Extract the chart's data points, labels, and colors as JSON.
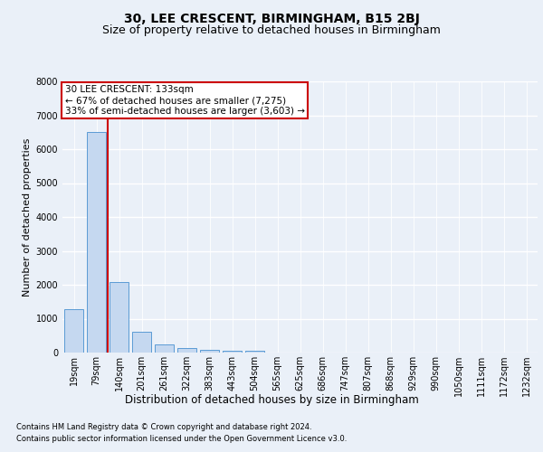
{
  "title1": "30, LEE CRESCENT, BIRMINGHAM, B15 2BJ",
  "title2": "Size of property relative to detached houses in Birmingham",
  "xlabel": "Distribution of detached houses by size in Birmingham",
  "ylabel": "Number of detached properties",
  "footnote1": "Contains HM Land Registry data © Crown copyright and database right 2024.",
  "footnote2": "Contains public sector information licensed under the Open Government Licence v3.0.",
  "annotation_title": "30 LEE CRESCENT: 133sqm",
  "annotation_line1": "← 67% of detached houses are smaller (7,275)",
  "annotation_line2": "33% of semi-detached houses are larger (3,603) →",
  "bar_categories": [
    "19sqm",
    "79sqm",
    "140sqm",
    "201sqm",
    "261sqm",
    "322sqm",
    "383sqm",
    "443sqm",
    "504sqm",
    "565sqm",
    "625sqm",
    "686sqm",
    "747sqm",
    "807sqm",
    "868sqm",
    "929sqm",
    "990sqm",
    "1050sqm",
    "1111sqm",
    "1172sqm",
    "1232sqm"
  ],
  "bar_values": [
    1280,
    6500,
    2080,
    620,
    250,
    130,
    90,
    60,
    60,
    0,
    0,
    0,
    0,
    0,
    0,
    0,
    0,
    0,
    0,
    0,
    0
  ],
  "bar_color": "#c5d8f0",
  "bar_edge_color": "#5b9bd5",
  "vline_color": "#cc0000",
  "vline_x_index": 2,
  "ylim": [
    0,
    8000
  ],
  "yticks": [
    0,
    1000,
    2000,
    3000,
    4000,
    5000,
    6000,
    7000,
    8000
  ],
  "bg_color": "#eaf0f8",
  "plot_bg_color": "#eaf0f8",
  "grid_color": "#ffffff",
  "annotation_box_facecolor": "#ffffff",
  "annotation_box_edgecolor": "#cc0000",
  "title1_fontsize": 10,
  "title2_fontsize": 9,
  "xlabel_fontsize": 8.5,
  "ylabel_fontsize": 8,
  "tick_fontsize": 7,
  "annotation_fontsize": 7.5,
  "footnote_fontsize": 6
}
